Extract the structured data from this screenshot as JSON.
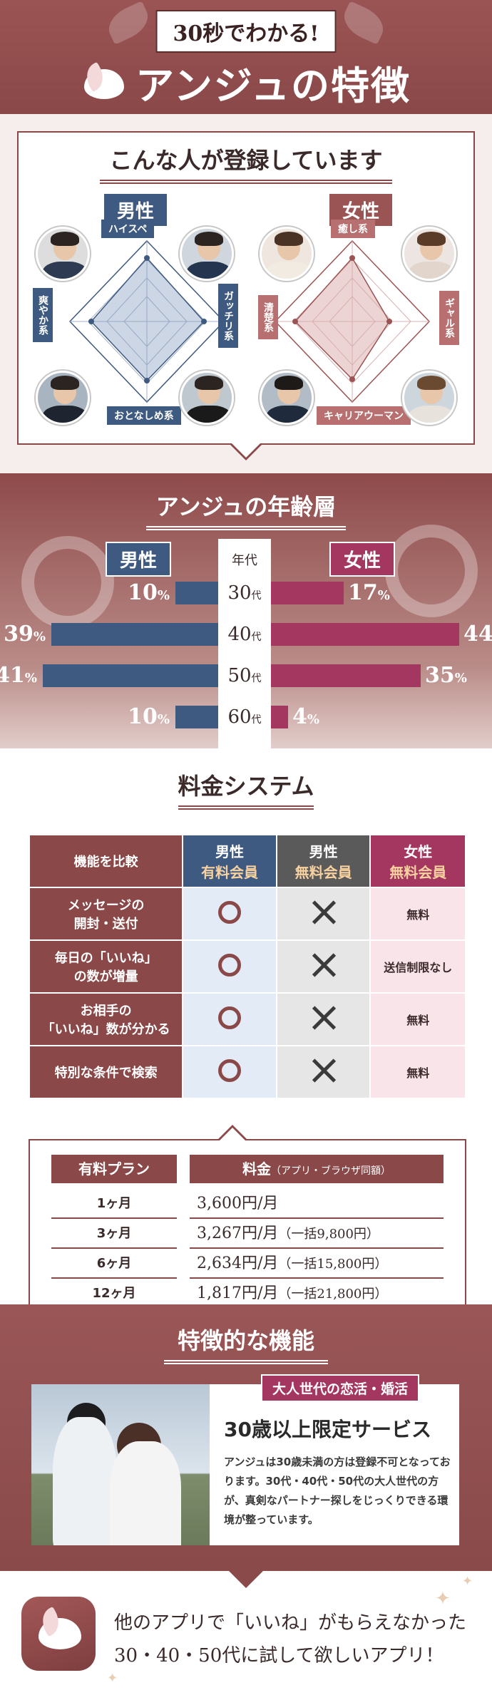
{
  "hero": {
    "tagline": "30秒でわかる!",
    "title": "アンジュの特徴"
  },
  "who": {
    "title": "こんな人が登録しています",
    "male": {
      "tag": "男性",
      "labels": {
        "top": "ハイスペ",
        "left": "爽やか系",
        "right": "ガッチリ系",
        "bottom": "おとなしめ系"
      }
    },
    "female": {
      "tag": "女性",
      "labels": {
        "top": "癒し系",
        "left": "清楚系",
        "right": "ギャル系",
        "bottom": "キャリアウーマン"
      }
    }
  },
  "age": {
    "title": "アンジュの年齢層",
    "male_tag": "男性",
    "female_tag": "女性",
    "column_header": "年代",
    "unit": "代",
    "pct": "%",
    "rows": [
      {
        "age": "30",
        "male": 10,
        "female": 17,
        "male_label": "10",
        "female_label": "17"
      },
      {
        "age": "40",
        "male": 39,
        "female": 44,
        "male_label": "39",
        "female_label": "44"
      },
      {
        "age": "50",
        "male": 41,
        "female": 35,
        "male_label": "41",
        "female_label": "35"
      },
      {
        "age": "60",
        "male": 10,
        "female": 4,
        "male_label": "10",
        "female_label": "4"
      }
    ],
    "colors": {
      "male": "#3f5a80",
      "female": "#a3375f"
    }
  },
  "pricing": {
    "title": "料金システム",
    "headers": {
      "feature": "機能を比較",
      "c1_top": "男性",
      "c1_sub": "有料会員",
      "c2_top": "男性",
      "c2_sub": "無料会員",
      "c3_top": "女性",
      "c3_sub": "無料会員"
    },
    "rows": [
      {
        "feature_l1": "メッセージの",
        "feature_l2": "開封・送付",
        "c3": "無料"
      },
      {
        "feature_l1": "毎日の「いいね」",
        "feature_l2": "の数が増量",
        "c3": "送信制限なし"
      },
      {
        "feature_l1": "お相手の",
        "feature_l2": "「いいね」数が分かる",
        "c3": "無料"
      },
      {
        "feature_l1": "特別な条件で検索",
        "feature_l2": "",
        "c3": "無料"
      }
    ],
    "plans_header": "有料プラン",
    "price_header": "料金",
    "price_header_note": "（アプリ・ブラウザ同額）",
    "plans": [
      {
        "plan": "1ヶ月",
        "price": "3,600円/月",
        "note": ""
      },
      {
        "plan": "3ヶ月",
        "price": "3,267円/月",
        "note": "（一括9,800円）"
      },
      {
        "plan": "6ヶ月",
        "price": "2,634円/月",
        "note": "（一括15,800円）"
      },
      {
        "plan": "12ヶ月",
        "price": "1,817円/月",
        "note": "（一括21,800円）"
      }
    ]
  },
  "features": {
    "title": "特徴的な機能",
    "badge": "大人世代の恋活・婚活",
    "headline": "30歳以上限定サービス",
    "description": "アンジュは30歳未満の方は登録不可となっております。30代・40代・50代の大人世代の方が、真剣なパートナー探しをじっくりできる環境が整っています。"
  },
  "footer": {
    "line1": "他のアプリで「いいね」がもらえなかった",
    "line2": "30・40・50代に試して欲しいアプリ！"
  }
}
